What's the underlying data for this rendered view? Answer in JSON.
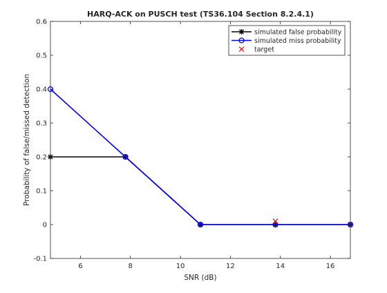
{
  "chart_data": {
    "type": "line",
    "title": "HARQ-ACK on PUSCH test (TS36.104 Section 8.2.4.1)",
    "xlabel": "SNR (dB)",
    "ylabel": "Probability of false/missed detection",
    "xlim": [
      4.8,
      16.8
    ],
    "ylim": [
      -0.1,
      0.6
    ],
    "xticks": [
      6,
      8,
      10,
      12,
      14,
      16
    ],
    "yticks": [
      -0.1,
      0,
      0.1,
      0.2,
      0.3,
      0.4,
      0.5,
      0.6
    ],
    "xtick_labels": [
      "6",
      "8",
      "10",
      "12",
      "14",
      "16"
    ],
    "ytick_labels": [
      "-0.1",
      "0",
      "0.1",
      "0.2",
      "0.3",
      "0.4",
      "0.5",
      "0.6"
    ],
    "grid": false,
    "legend_position": "top-right",
    "series": [
      {
        "name": "simulated false probability",
        "color": "#000000",
        "marker": "asterisk",
        "x": [
          4.8,
          7.8,
          10.8,
          13.8,
          16.8
        ],
        "y": [
          0.2,
          0.2,
          0,
          0,
          0
        ]
      },
      {
        "name": "simulated miss probability",
        "color": "#0000ff",
        "marker": "circle",
        "x": [
          4.8,
          7.8,
          10.8,
          13.8,
          16.8
        ],
        "y": [
          0.4,
          0.2,
          0,
          0,
          0
        ]
      },
      {
        "name": "target",
        "color": "#ff0000",
        "marker": "x",
        "x": [
          13.8
        ],
        "y": [
          0.01
        ]
      }
    ]
  }
}
